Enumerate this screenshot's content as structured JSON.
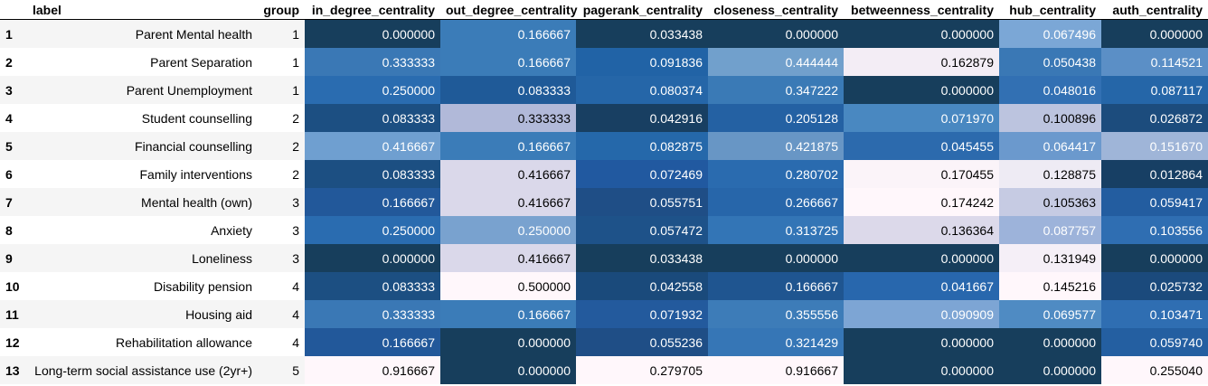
{
  "columns": [
    "label",
    "group",
    "in_degree_centrality",
    "out_degree_centrality",
    "pagerank_centrality",
    "closeness_centrality",
    "betweenness_centrality",
    "hub_centrality",
    "auth_centrality"
  ],
  "rows": [
    {
      "index": "1",
      "label": "Parent Mental health",
      "group": "1",
      "values": [
        "0.000000",
        "0.166667",
        "0.033438",
        "0.000000",
        "0.000000",
        "0.067496",
        "0.000000"
      ]
    },
    {
      "index": "2",
      "label": "Parent Separation",
      "group": "1",
      "values": [
        "0.333333",
        "0.166667",
        "0.091836",
        "0.444444",
        "0.162879",
        "0.050438",
        "0.114521"
      ]
    },
    {
      "index": "3",
      "label": "Parent Unemployment",
      "group": "1",
      "values": [
        "0.250000",
        "0.083333",
        "0.080374",
        "0.347222",
        "0.000000",
        "0.048016",
        "0.087117"
      ]
    },
    {
      "index": "4",
      "label": "Student counselling",
      "group": "2",
      "values": [
        "0.083333",
        "0.333333",
        "0.042916",
        "0.205128",
        "0.071970",
        "0.100896",
        "0.026872"
      ]
    },
    {
      "index": "5",
      "label": "Financial counselling",
      "group": "2",
      "values": [
        "0.416667",
        "0.166667",
        "0.082875",
        "0.421875",
        "0.045455",
        "0.064417",
        "0.151670"
      ]
    },
    {
      "index": "6",
      "label": "Family interventions",
      "group": "2",
      "values": [
        "0.083333",
        "0.416667",
        "0.072469",
        "0.280702",
        "0.170455",
        "0.128875",
        "0.012864"
      ]
    },
    {
      "index": "7",
      "label": "Mental health (own)",
      "group": "3",
      "values": [
        "0.166667",
        "0.416667",
        "0.055751",
        "0.266667",
        "0.174242",
        "0.105363",
        "0.059417"
      ]
    },
    {
      "index": "8",
      "label": "Anxiety",
      "group": "3",
      "values": [
        "0.250000",
        "0.250000",
        "0.057472",
        "0.313725",
        "0.136364",
        "0.087757",
        "0.103556"
      ]
    },
    {
      "index": "9",
      "label": "Loneliness",
      "group": "3",
      "values": [
        "0.000000",
        "0.416667",
        "0.033438",
        "0.000000",
        "0.000000",
        "0.131949",
        "0.000000"
      ]
    },
    {
      "index": "10",
      "label": "Disability pension",
      "group": "4",
      "values": [
        "0.083333",
        "0.500000",
        "0.042558",
        "0.166667",
        "0.041667",
        "0.145216",
        "0.025732"
      ]
    },
    {
      "index": "11",
      "label": "Housing aid",
      "group": "4",
      "values": [
        "0.333333",
        "0.166667",
        "0.071932",
        "0.355556",
        "0.090909",
        "0.069577",
        "0.103471"
      ]
    },
    {
      "index": "12",
      "label": "Rehabilitation allowance",
      "group": "4",
      "values": [
        "0.166667",
        "0.000000",
        "0.055236",
        "0.321429",
        "0.000000",
        "0.000000",
        "0.059740"
      ]
    },
    {
      "index": "13",
      "label": "Long-term social assistance use (2yr+)",
      "group": "5",
      "values": [
        "0.916667",
        "0.000000",
        "0.279705",
        "0.916667",
        "0.000000",
        "0.000000",
        "0.255040"
      ]
    }
  ],
  "colors": {
    "header_rule": "#000000",
    "stripe": "#f5f5f5",
    "scale_low": "#fff7fb",
    "scale_mid": "#3690c0",
    "scale_high": "#023858"
  },
  "cell_colors": [
    [
      "#173e5c",
      "#3b7cb8",
      "#173e5c",
      "#173e5c",
      "#173e5c",
      "#7ba7d6",
      "#173e5c"
    ],
    [
      "#3a78b5",
      "#3b7cb8",
      "#2163a6",
      "#71a0cc",
      "#f3edf5",
      "#3a78b5",
      "#5b8fc6"
    ],
    [
      "#2a6cb0",
      "#1f5a98",
      "#2566a8",
      "#3a7ab6",
      "#173e5c",
      "#3270b3",
      "#2566a8"
    ],
    [
      "#1c4f82",
      "#b1b9d9",
      "#183f62",
      "#2461a3",
      "#4988c1",
      "#bcc4df",
      "#1c4c7d"
    ],
    [
      "#6f9fd0",
      "#3b7cb8",
      "#2568aa",
      "#6896c5",
      "#2c6aad",
      "#6b99cd",
      "#9fb5d8"
    ],
    [
      "#1c4f82",
      "#dad8ea",
      "#2159a0",
      "#2a6baf",
      "#fbf4f9",
      "#eeebf4",
      "#173f64"
    ],
    [
      "#22589a",
      "#dad8ea",
      "#1f4e86",
      "#2766aa",
      "#fff7fb",
      "#c6cbe3",
      "#235da0"
    ],
    [
      "#2a6cb0",
      "#79a2cf",
      "#1e5289",
      "#3375b6",
      "#dcd9ea",
      "#9db3da",
      "#2f6eb2"
    ],
    [
      "#173e5c",
      "#dad8ea",
      "#173e5c",
      "#173e5c",
      "#173e5c",
      "#f5eff7",
      "#173e5c"
    ],
    [
      "#1c4f82",
      "#fff7fb",
      "#1a4a7b",
      "#1f5590",
      "#2867ad",
      "#fff7fb",
      "#1b4a7c"
    ],
    [
      "#3a78b5",
      "#3b7cb8",
      "#235a9d",
      "#3d7cb8",
      "#7da5d4",
      "#4f8bc3",
      "#2f6eb2"
    ],
    [
      "#22589a",
      "#173e5c",
      "#1f4e86",
      "#3676b6",
      "#173e5c",
      "#173e5c",
      "#245fa1"
    ],
    [
      "#fff7fb",
      "#173e5c",
      "#fff7fb",
      "#fff7fb",
      "#173e5c",
      "#173e5c",
      "#fff7fb"
    ]
  ],
  "text_colors": [
    [
      "#fff",
      "#fff",
      "#fff",
      "#fff",
      "#fff",
      "#fff",
      "#fff"
    ],
    [
      "#fff",
      "#fff",
      "#fff",
      "#fff",
      "#000",
      "#fff",
      "#fff"
    ],
    [
      "#fff",
      "#fff",
      "#fff",
      "#fff",
      "#fff",
      "#fff",
      "#fff"
    ],
    [
      "#fff",
      "#000",
      "#fff",
      "#fff",
      "#fff",
      "#000",
      "#fff"
    ],
    [
      "#fff",
      "#fff",
      "#fff",
      "#fff",
      "#fff",
      "#fff",
      "#fff"
    ],
    [
      "#fff",
      "#000",
      "#fff",
      "#fff",
      "#000",
      "#000",
      "#fff"
    ],
    [
      "#fff",
      "#000",
      "#fff",
      "#fff",
      "#000",
      "#000",
      "#fff"
    ],
    [
      "#fff",
      "#fff",
      "#fff",
      "#fff",
      "#000",
      "#fff",
      "#fff"
    ],
    [
      "#fff",
      "#000",
      "#fff",
      "#fff",
      "#fff",
      "#000",
      "#fff"
    ],
    [
      "#fff",
      "#000",
      "#fff",
      "#fff",
      "#fff",
      "#000",
      "#fff"
    ],
    [
      "#fff",
      "#fff",
      "#fff",
      "#fff",
      "#fff",
      "#fff",
      "#fff"
    ],
    [
      "#fff",
      "#fff",
      "#fff",
      "#fff",
      "#fff",
      "#fff",
      "#fff"
    ],
    [
      "#000",
      "#fff",
      "#000",
      "#000",
      "#fff",
      "#fff",
      "#000"
    ]
  ]
}
